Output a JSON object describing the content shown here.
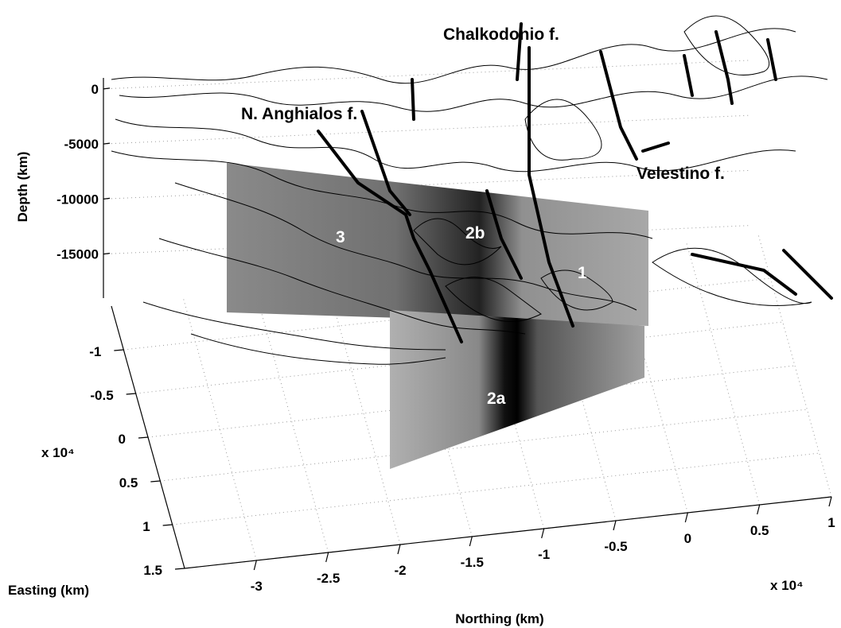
{
  "chart_data": {
    "type": "slice3d",
    "zlabel": "Depth (km)",
    "xlabel": "Northing (km)",
    "ylabel": "Easting (km)",
    "zlim": [
      -19000,
      1000
    ],
    "zticks": [
      0,
      -5000,
      -10000,
      -15000
    ],
    "xlim": [
      -3.5,
      1
    ],
    "xticks": [
      -3,
      -2.5,
      -2,
      -1.5,
      -1,
      -0.5,
      0,
      0.5,
      1
    ],
    "x_exponent": "x 10⁴",
    "ylim": [
      -1.5,
      1.5
    ],
    "yticks": [
      -1,
      -0.5,
      0,
      0.5,
      1,
      1.5
    ],
    "y_exponent": "x 10⁴",
    "grid": true,
    "annotations": [
      "Chalkodonio f.",
      "N. Anghialos f.",
      "Velestino f.",
      "3",
      "2b",
      "1",
      "2a"
    ]
  }
}
